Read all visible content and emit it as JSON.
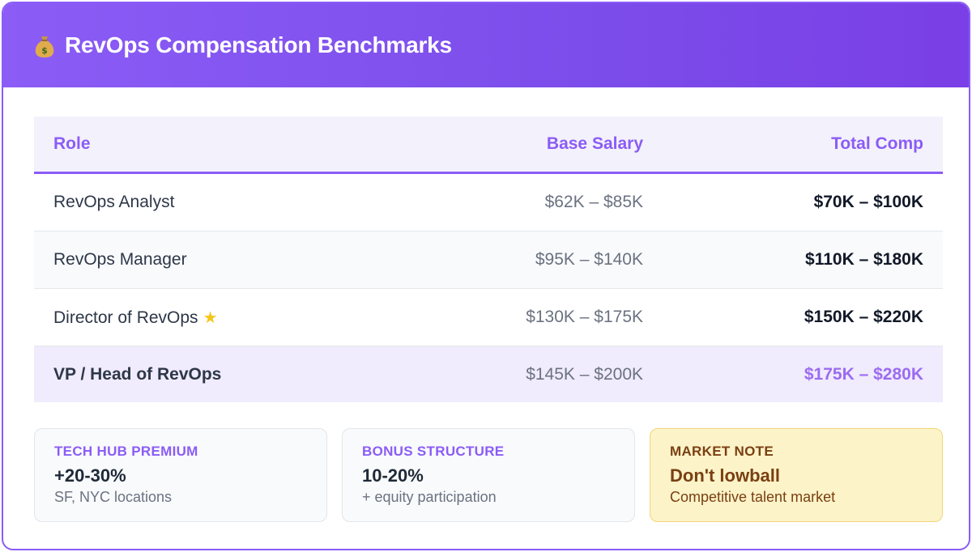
{
  "header": {
    "icon": "money-bag-icon",
    "title": "RevOps Compensation Benchmarks"
  },
  "table": {
    "columns": [
      "Role",
      "Base Salary",
      "Total Comp"
    ],
    "rows": [
      {
        "role": "RevOps Analyst",
        "base": "$62K – $85K",
        "total": "$70K – $100K"
      },
      {
        "role": "RevOps Manager",
        "base": "$95K – $140K",
        "total": "$110K – $180K"
      },
      {
        "role": "Director of RevOps",
        "base": "$130K – $175K",
        "total": "$150K – $220K",
        "icon": "star-icon"
      },
      {
        "role": "VP / Head of RevOps",
        "base": "$145K – $200K",
        "total": "$175K – $280K"
      }
    ]
  },
  "cards": [
    {
      "label": "TECH HUB PREMIUM",
      "value": "+20-30%",
      "sub": "SF, NYC locations"
    },
    {
      "label": "BONUS STRUCTURE",
      "value": "10-20%",
      "sub": "+ equity participation"
    },
    {
      "label": "MARKET NOTE",
      "value": "Don't lowball",
      "sub": "Competitive talent market"
    }
  ],
  "colors": {
    "accent": "#8b5cf6",
    "note_bg": "#fcf3c9",
    "note_text": "#7a3f12"
  }
}
